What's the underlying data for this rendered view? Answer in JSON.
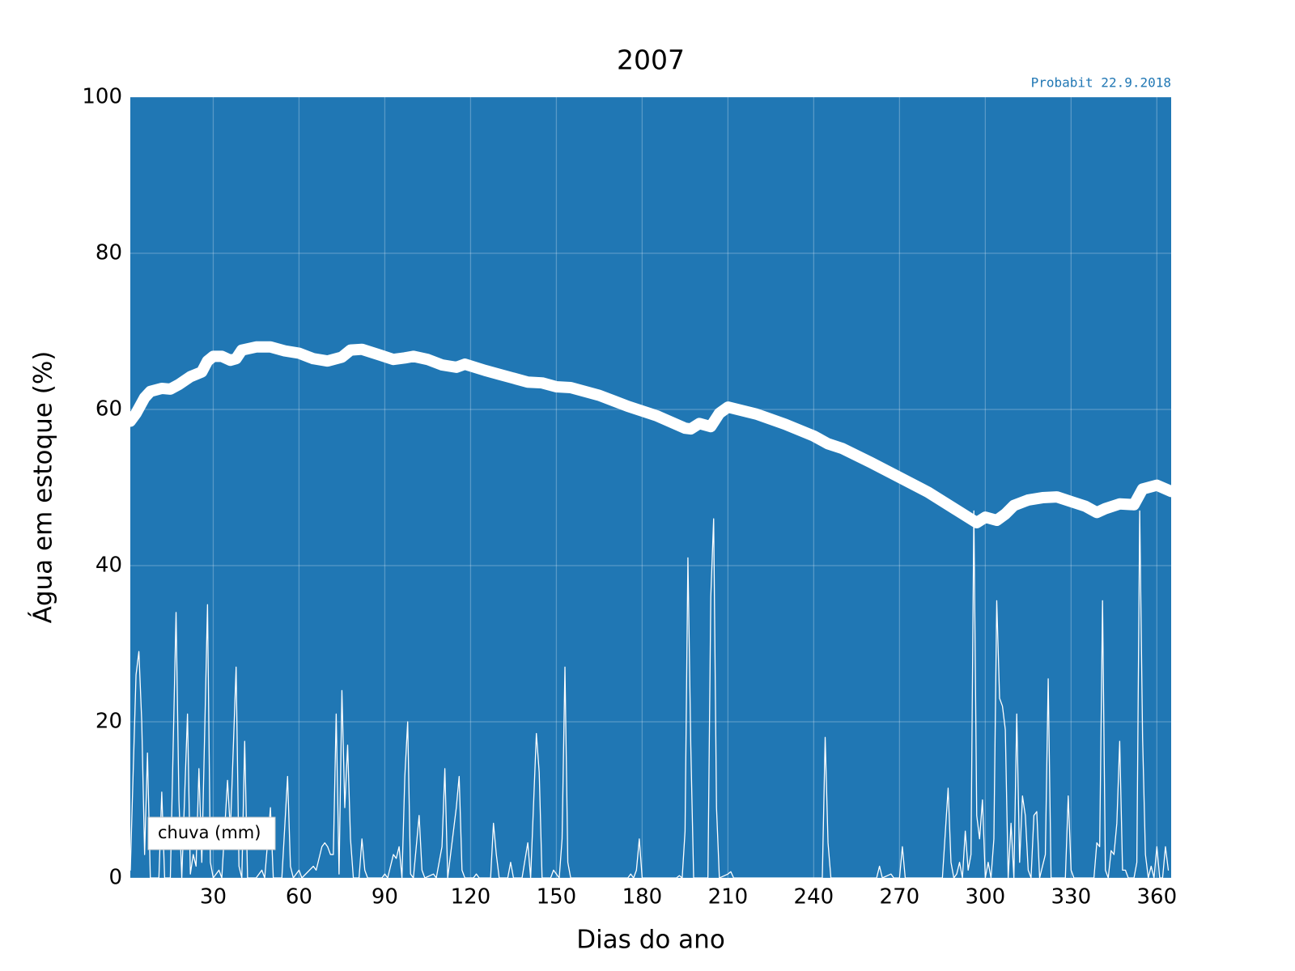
{
  "chart_data": {
    "type": "line",
    "title": "2007",
    "annotation": "Probabit 22.9.2018",
    "xlabel": "Dias do ano",
    "ylabel": "Água em estoque (%)",
    "xlim": [
      1,
      365
    ],
    "ylim": [
      0,
      100
    ],
    "xticks": [
      30,
      60,
      90,
      120,
      150,
      180,
      210,
      240,
      270,
      300,
      330,
      360
    ],
    "yticks": [
      0,
      20,
      40,
      60,
      80,
      100
    ],
    "grid": true,
    "background": "#2077b4",
    "legend": "lower left",
    "series": [
      {
        "color": "#ffffff",
        "x": [
          1,
          3,
          6,
          8,
          12,
          15,
          18,
          22,
          26,
          28,
          30,
          33,
          36,
          38,
          40,
          45,
          50,
          55,
          60,
          65,
          70,
          75,
          78,
          82,
          88,
          93,
          97,
          100,
          105,
          110,
          115,
          118,
          125,
          130,
          135,
          140,
          145,
          150,
          155,
          165,
          175,
          185,
          195,
          197,
          200,
          204,
          207,
          210,
          220,
          230,
          240,
          245,
          250,
          260,
          270,
          280,
          290,
          297,
          300,
          304,
          307,
          310,
          315,
          320,
          325,
          330,
          335,
          339,
          342,
          347,
          352,
          355,
          360,
          365
        ],
        "values": [
          58.5,
          59.5,
          61.5,
          62.3,
          62.7,
          62.6,
          63.2,
          64.2,
          64.8,
          66.2,
          66.8,
          66.8,
          66.3,
          66.5,
          67.6,
          68,
          68,
          67.5,
          67.2,
          66.5,
          66.2,
          66.7,
          67.6,
          67.7,
          67,
          66.4,
          66.6,
          66.8,
          66.4,
          65.7,
          65.4,
          65.8,
          65,
          64.5,
          64,
          63.5,
          63.4,
          62.9,
          62.8,
          61.8,
          60.4,
          59.2,
          57.6,
          57.5,
          58.2,
          57.8,
          59.5,
          60.3,
          59.4,
          58.1,
          56.6,
          55.6,
          55,
          53.2,
          51.3,
          49.4,
          47.1,
          45.5,
          46.2,
          45.8,
          46.6,
          47.7,
          48.4,
          48.7,
          48.8,
          48.2,
          47.6,
          46.8,
          47.3,
          47.9,
          47.8,
          49.8,
          50.3,
          49.5
        ]
      },
      {
        "name": "chuva (mm)",
        "color": "#ffffff",
        "x": [
          1,
          3,
          4,
          5,
          6,
          7,
          8,
          11,
          12,
          13,
          15,
          17,
          18,
          19,
          21,
          22,
          23,
          24,
          25,
          26,
          28,
          29,
          30,
          32,
          33,
          35,
          36,
          38,
          39,
          40,
          41,
          42,
          45,
          47,
          48,
          50,
          51,
          54,
          56,
          57,
          58,
          60,
          61,
          65,
          66,
          68,
          69,
          70,
          71,
          72,
          73,
          74,
          75,
          76,
          77,
          78,
          79,
          81,
          82,
          83,
          84,
          89,
          90,
          91,
          93,
          94,
          95,
          96,
          97,
          98,
          99,
          100,
          102,
          103,
          104,
          107,
          108,
          110,
          111,
          112,
          115,
          116,
          117,
          118,
          121,
          122,
          123,
          127,
          128,
          129,
          130,
          133,
          134,
          135,
          138,
          140,
          141,
          143,
          144,
          145,
          148,
          149,
          150,
          151,
          152,
          153,
          154,
          155,
          175,
          176,
          177,
          178,
          179,
          180,
          192,
          193,
          194,
          195,
          196,
          197,
          198,
          203,
          204,
          205,
          206,
          207,
          210,
          211,
          212,
          243,
          244,
          245,
          246,
          262,
          263,
          264,
          267,
          268,
          270,
          271,
          272,
          285,
          287,
          288,
          289,
          290,
          291,
          292,
          293,
          294,
          295,
          296,
          297,
          298,
          299,
          300,
          301,
          302,
          303,
          304,
          305,
          306,
          307,
          308,
          309,
          310,
          311,
          312,
          313,
          314,
          315,
          316,
          317,
          318,
          319,
          321,
          322,
          323,
          328,
          329,
          330,
          331,
          338,
          339,
          340,
          341,
          342,
          343,
          344,
          345,
          346,
          347,
          348,
          349,
          350,
          352,
          353,
          354,
          355,
          356,
          357,
          358,
          359,
          360,
          361,
          362,
          363,
          364
        ],
        "values": [
          1,
          26,
          29,
          20,
          3,
          16,
          0,
          0,
          11,
          0,
          0,
          34,
          10,
          0,
          21,
          0.5,
          3,
          1.5,
          14,
          2,
          35,
          2,
          0,
          1,
          0,
          12.5,
          6,
          27,
          1.5,
          0,
          17.5,
          0,
          0,
          1,
          0,
          9,
          0,
          0,
          13,
          1.5,
          0,
          1,
          0,
          1.5,
          1,
          4,
          4.5,
          4,
          3,
          3,
          21,
          0.5,
          24,
          9,
          17,
          5,
          0,
          0,
          5,
          1,
          0,
          0,
          0.5,
          0,
          3,
          2.5,
          4,
          0,
          13,
          20,
          0.5,
          0,
          8,
          1,
          0,
          0.5,
          0,
          4,
          14,
          0,
          9,
          13,
          1,
          0,
          0,
          0.5,
          0,
          0,
          7,
          3,
          0,
          0,
          2,
          0,
          0,
          4.5,
          0,
          18.5,
          13.5,
          0,
          0,
          1,
          0.5,
          0,
          5,
          27,
          2,
          0,
          0,
          0.5,
          0,
          1,
          5,
          0,
          0,
          0.3,
          0,
          6,
          41,
          17,
          0,
          0,
          36,
          46,
          9,
          0,
          0.5,
          0.8,
          0,
          0,
          18,
          4.5,
          0,
          0,
          1.5,
          0,
          0.5,
          0,
          0,
          4,
          0,
          0,
          11.5,
          2,
          0,
          0.5,
          2,
          0,
          6,
          1,
          3,
          47,
          8,
          5,
          10,
          0,
          2,
          0,
          5,
          35.5,
          23,
          22,
          19,
          0,
          7,
          0,
          21,
          2,
          10.5,
          8,
          1,
          0,
          8,
          8.5,
          0,
          3,
          25.5,
          0,
          0,
          10.5,
          1,
          0,
          0,
          4.5,
          4,
          35.5,
          1,
          0,
          3.5,
          3,
          7,
          17.5,
          1,
          1,
          0,
          0,
          2,
          47,
          18,
          3,
          0,
          1.5,
          0,
          4,
          0,
          0,
          4,
          1
        ]
      }
    ]
  }
}
